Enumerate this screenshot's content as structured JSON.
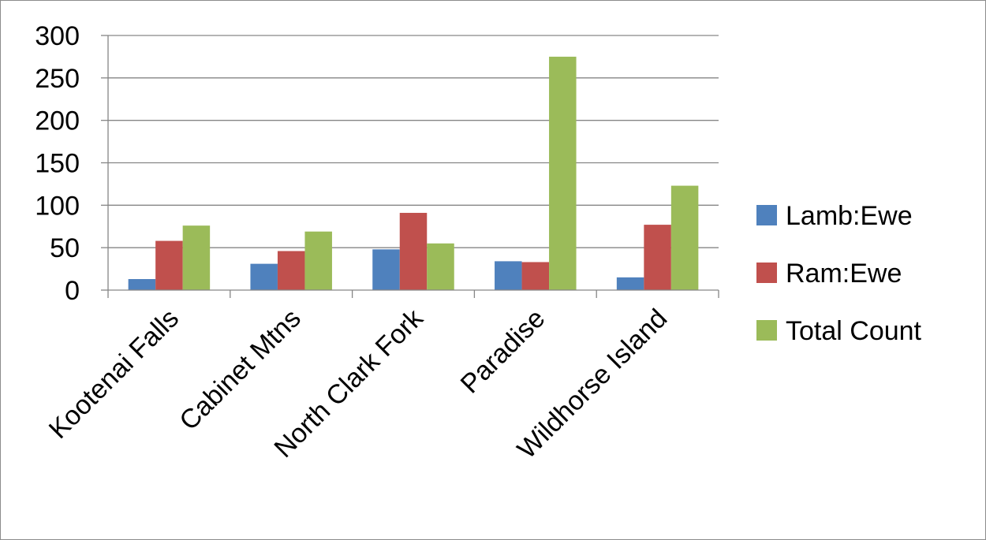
{
  "chart_data": {
    "type": "bar",
    "title": "",
    "xlabel": "",
    "ylabel": "",
    "categories": [
      "Kootenai Falls",
      "Cabinet Mtns",
      "North Clark Fork",
      "Paradise",
      "Wildhorse Island"
    ],
    "series": [
      {
        "name": "Lamb:Ewe",
        "color": "#4f81bd",
        "values": [
          13,
          31,
          48,
          34,
          15
        ]
      },
      {
        "name": "Ram:Ewe",
        "color": "#c0504d",
        "values": [
          58,
          46,
          91,
          33,
          77
        ]
      },
      {
        "name": "Total Count",
        "color": "#9bbb59",
        "values": [
          76,
          69,
          55,
          275,
          123
        ]
      }
    ],
    "ylim": [
      0,
      300
    ],
    "yticks": [
      0,
      50,
      100,
      150,
      200,
      250,
      300
    ],
    "grid": true,
    "legend_position": "right"
  }
}
